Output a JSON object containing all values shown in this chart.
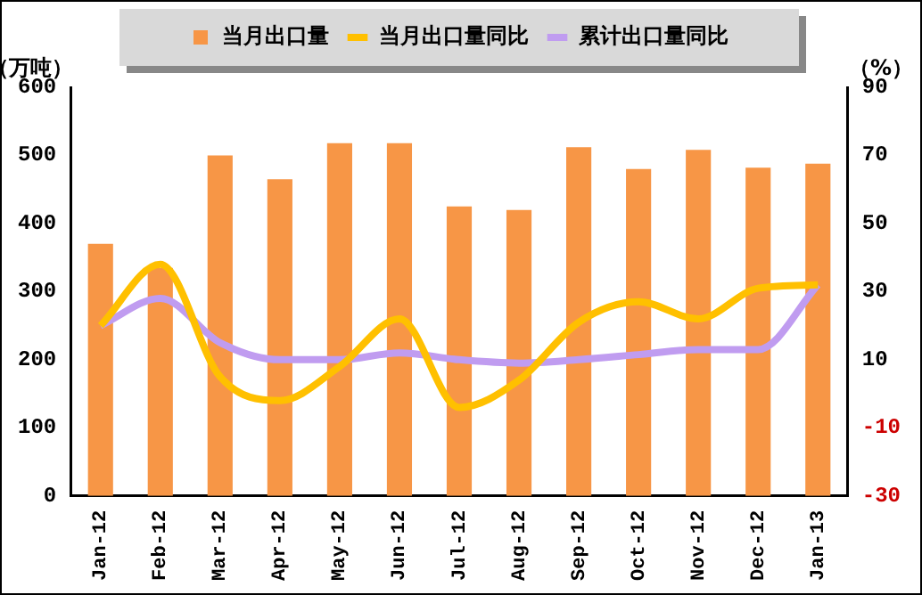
{
  "chart_data": {
    "type": "bar",
    "ylabel": "（万吨）",
    "y2label": "（%）",
    "categories": [
      "Jan-12",
      "Feb-12",
      "Mar-12",
      "Apr-12",
      "May-12",
      "Jun-12",
      "Jul-12",
      "Aug-12",
      "Sep-12",
      "Oct-12",
      "Nov-12",
      "Dec-12",
      "Jan-13"
    ],
    "series": [
      {
        "name": "当月出口量",
        "color": "#f79646",
        "values": [
          370,
          335,
          500,
          465,
          518,
          518,
          425,
          420,
          512,
          480,
          508,
          482,
          488
        ]
      },
      {
        "name": "当月出口量同比",
        "type": "line",
        "axis": "y2",
        "color": "#ffc000",
        "values": [
          20,
          38,
          5,
          -2,
          8,
          22,
          -4,
          4,
          21,
          27,
          22,
          31,
          32
        ]
      },
      {
        "name": "累计出口量同比",
        "type": "line",
        "axis": "y2",
        "color": "#c09cf0",
        "values": [
          20,
          28,
          15,
          10,
          10,
          12,
          10,
          9,
          10,
          11.5,
          13,
          13,
          32
        ]
      }
    ],
    "ylim": [
      0,
      600
    ],
    "yticks": [
      0,
      100,
      200,
      300,
      400,
      500,
      600
    ],
    "y2lim": [
      -30,
      90
    ],
    "y2ticks": [
      -30,
      -10,
      10,
      30,
      50,
      70,
      90
    ],
    "legend": "top",
    "grid": false,
    "marker": "none",
    "line_style": "solid"
  }
}
